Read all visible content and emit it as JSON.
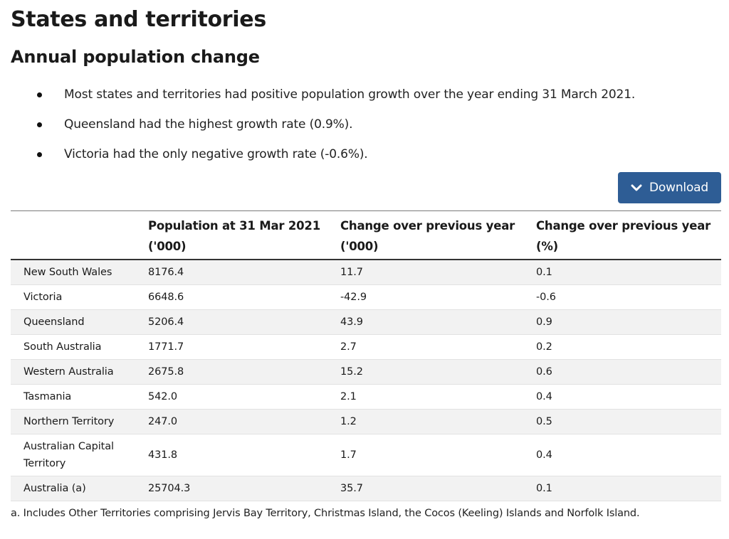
{
  "page": {
    "title": "States and territories",
    "subtitle": "Annual population change"
  },
  "bullets": [
    "Most states and territories had positive population growth over the year ending 31 March 2021.",
    "Queensland had the highest growth rate (0.9%).",
    "Victoria had the only negative growth rate (-0.6%)."
  ],
  "download": {
    "label": "Download",
    "icon": "chevron-down-icon",
    "color": "#2e5d95"
  },
  "table": {
    "headers": [
      "",
      "Population at 31 Mar 2021 ('000)",
      "Change over previous year ('000)",
      "Change over previous year (%)"
    ],
    "rows": [
      [
        "New South Wales",
        "8176.4",
        "11.7",
        "0.1"
      ],
      [
        "Victoria",
        "6648.6",
        "-42.9",
        "-0.6"
      ],
      [
        "Queensland",
        "5206.4",
        "43.9",
        "0.9"
      ],
      [
        "South Australia",
        "1771.7",
        "2.7",
        "0.2"
      ],
      [
        "Western Australia",
        "2675.8",
        "15.2",
        "0.6"
      ],
      [
        "Tasmania",
        "542.0",
        "2.1",
        "0.4"
      ],
      [
        "Northern Territory",
        "247.0",
        "1.2",
        "0.5"
      ],
      [
        "Australian Capital Territory",
        "431.8",
        "1.7",
        "0.4"
      ],
      [
        "Australia (a)",
        "25704.3",
        "35.7",
        "0.1"
      ]
    ]
  },
  "footnote": "a. Includes Other Territories comprising Jervis Bay Territory, Christmas Island, the Cocos (Keeling) Islands and Norfolk Island."
}
